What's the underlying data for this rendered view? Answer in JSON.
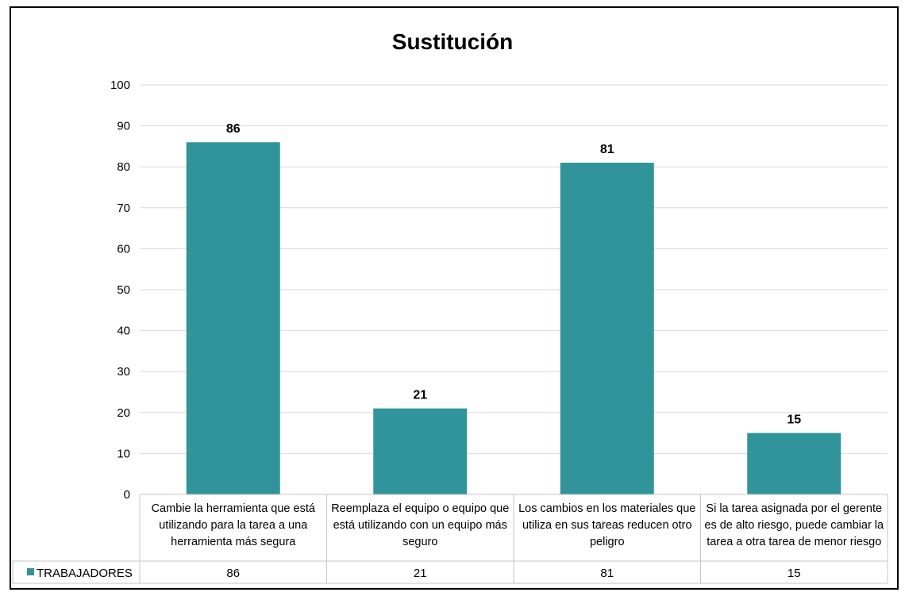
{
  "chart_data": {
    "type": "bar",
    "title": "Sustitución",
    "xlabel": "",
    "ylabel": "",
    "ylim": [
      0,
      100
    ],
    "yticks": [
      0,
      10,
      20,
      30,
      40,
      50,
      60,
      70,
      80,
      90,
      100
    ],
    "grid": true,
    "categories": [
      "Cambie la herramienta que está utilizando para la tarea a una herramienta más segura",
      "Reemplaza el equipo o equipo que está utilizando con un equipo más seguro",
      "Los cambios en los materiales que utiliza en sus tareas reducen otro peligro",
      "Si la tarea asignada por el gerente es de alto riesgo, puede cambiar la tarea a otra tarea de menor riesgo"
    ],
    "category_lines": [
      [
        "Cambie la herramienta que está",
        "utilizando para la tarea a una",
        "herramienta más segura"
      ],
      [
        "Reemplaza el equipo o equipo que",
        "está utilizando con un equipo más",
        "seguro"
      ],
      [
        "Los cambios en los materiales que",
        "utiliza en sus tareas reducen otro",
        "peligro"
      ],
      [
        "Si la tarea asignada por el gerente",
        "es de alto riesgo, puede cambiar la",
        "tarea a otra tarea de menor riesgo"
      ]
    ],
    "series": [
      {
        "name": "TRABAJADORES",
        "values": [
          86,
          21,
          81,
          15
        ],
        "color": "#31949b"
      }
    ],
    "data_labels": [
      "86",
      "21",
      "81",
      "15"
    ],
    "data_table_values": [
      "86",
      "21",
      "81",
      "15"
    ],
    "legend": "data-table"
  }
}
